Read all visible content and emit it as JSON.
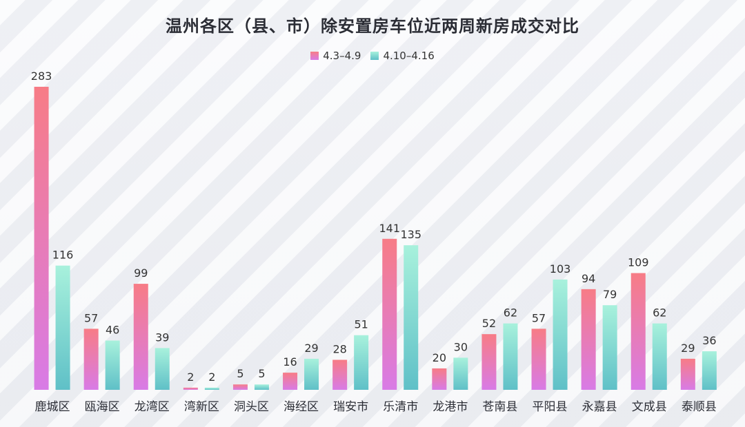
{
  "chart_data": {
    "type": "bar",
    "title": "温州各区（县、市）除安置房车位近两周新房成交对比",
    "categories": [
      "鹿城区",
      "瓯海区",
      "龙湾区",
      "湾新区",
      "洞头区",
      "海经区",
      "瑞安市",
      "乐清市",
      "龙港市",
      "苍南县",
      "平阳县",
      "永嘉县",
      "文成县",
      "泰顺县"
    ],
    "series": [
      {
        "name": "4.3–4.9",
        "values": [
          283,
          57,
          99,
          2,
          5,
          16,
          28,
          141,
          20,
          52,
          57,
          94,
          109,
          29
        ]
      },
      {
        "name": "4.10–4.16",
        "values": [
          116,
          46,
          39,
          2,
          5,
          29,
          51,
          135,
          30,
          62,
          103,
          79,
          62,
          36
        ]
      }
    ],
    "ylim": [
      0,
      283
    ],
    "grid": false,
    "legend_position": "top-center",
    "colors": {
      "series1_top": "#f77c86",
      "series1_bottom": "#d87be6",
      "series2_top": "#a8f1dc",
      "series2_bottom": "#5fc0c7"
    }
  }
}
